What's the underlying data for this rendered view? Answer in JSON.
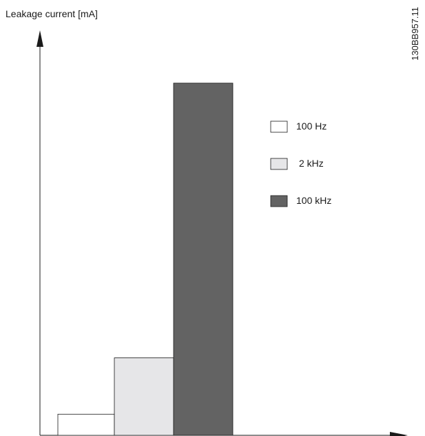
{
  "chart_data": {
    "type": "bar",
    "categories": [
      "100 Hz",
      "2 kHz",
      "100 kHz"
    ],
    "values": [
      6,
      22,
      100
    ],
    "ylabel": "Leakage current [mA]",
    "xlabel": "",
    "title": "",
    "grid": false,
    "legend": "right",
    "series_colors": [
      "#ffffff",
      "#e6e6e8",
      "#636363"
    ],
    "ylim": [
      0,
      115
    ]
  },
  "figure_id": "130BB957.11"
}
